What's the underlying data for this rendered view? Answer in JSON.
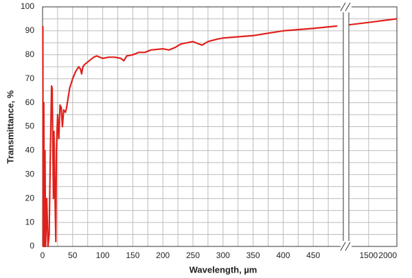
{
  "chart_data": {
    "type": "line",
    "x_label": "Wavelength, µm",
    "y_label": "Transmittance, %",
    "xlim": [
      0,
      500
    ],
    "xticks": [
      0,
      50,
      100,
      150,
      200,
      250,
      300,
      350,
      400,
      450
    ],
    "x_break": {
      "xlim": [
        1150,
        2000
      ],
      "xticks": [
        1500,
        2000
      ]
    },
    "ylim": [
      0,
      100
    ],
    "yticks": [
      0,
      10,
      20,
      30,
      40,
      50,
      60,
      70,
      80,
      90,
      100
    ],
    "grid": true,
    "series": [
      {
        "color": "#e0201b",
        "segment": "main",
        "x": [
          0.5,
          1,
          2,
          3,
          4,
          5,
          7,
          9,
          11,
          13,
          15,
          16,
          18,
          19,
          20,
          22,
          23,
          25,
          27,
          29,
          31,
          33,
          35,
          38,
          40,
          45,
          50,
          55,
          60,
          63,
          65,
          67,
          70,
          75,
          80,
          85,
          90,
          95,
          100,
          110,
          120,
          130,
          135,
          140,
          150,
          160,
          170,
          180,
          200,
          210,
          220,
          230,
          250,
          260,
          265,
          275,
          290,
          300,
          350,
          400,
          450,
          490
        ],
        "values": [
          92,
          0,
          60,
          0,
          40,
          0,
          20,
          0,
          5,
          40,
          67,
          66,
          20,
          48,
          30,
          2,
          40,
          55,
          45,
          59,
          58,
          50,
          57,
          56,
          58,
          66,
          70,
          73,
          75,
          74,
          72,
          75,
          76,
          77,
          78,
          79,
          79.5,
          79,
          78.5,
          79,
          79,
          78.5,
          77.5,
          79.5,
          80,
          81,
          81,
          82,
          82.5,
          82,
          83,
          84.5,
          85.5,
          84.5,
          84,
          85.5,
          86.5,
          87,
          88,
          90,
          91,
          92
        ]
      },
      {
        "color": "#e0201b",
        "segment": "break",
        "x": [
          1150,
          1500,
          2000
        ],
        "values": [
          92.5,
          93.5,
          95
        ]
      }
    ]
  }
}
